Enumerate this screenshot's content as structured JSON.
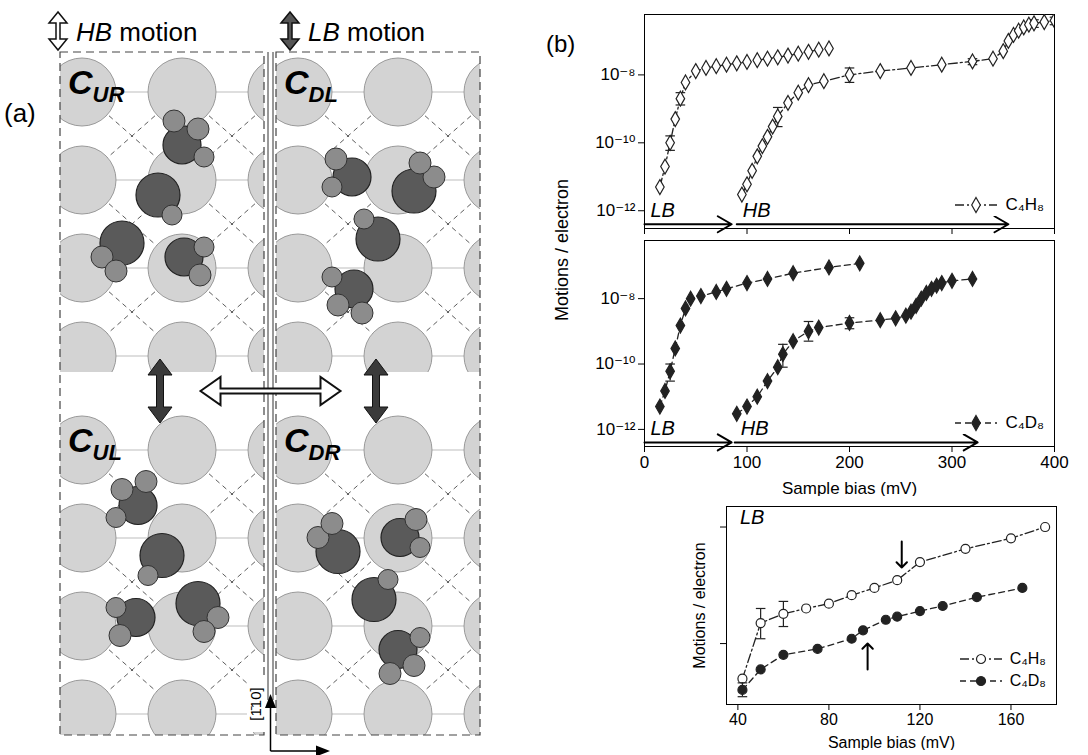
{
  "panel_labels": [
    "(a)",
    "(b)"
  ],
  "diagram": {
    "legend": [
      {
        "text": "HB motion",
        "arrow": "hollow"
      },
      {
        "text": "LB motion",
        "arrow": "filled"
      }
    ],
    "cells": [
      {
        "label": "C",
        "subscript": "UR",
        "position": "top-left"
      },
      {
        "label": "C",
        "subscript": "DL",
        "position": "top-right"
      },
      {
        "label": "C",
        "subscript": "UL",
        "position": "bottom-left"
      },
      {
        "label": "C",
        "subscript": "DR",
        "position": "bottom-right"
      }
    ],
    "direction_label": "[1̄10]"
  },
  "chart_data": [
    {
      "type": "line",
      "log": "y",
      "xlim": [
        0,
        400
      ],
      "xticks": [
        0,
        100,
        200,
        300,
        400
      ],
      "ylim": [
        3e-13,
        6e-07
      ],
      "yticks": [
        {
          "value": 1e-12,
          "label": "10⁻¹²"
        },
        {
          "value": 1e-10,
          "label": "10⁻¹⁰"
        },
        {
          "value": 1e-08,
          "label": "10⁻⁸"
        }
      ],
      "tick_labels": "y",
      "legend": "lower right",
      "series": [
        {
          "name": "C₄H₈",
          "range": "LB",
          "color": "#222222",
          "marker": "diamond-open",
          "line_style": "dashdot",
          "x": [
            15,
            20,
            25,
            30,
            35,
            40,
            50,
            60,
            70,
            80,
            90,
            100,
            110,
            120,
            130,
            140,
            150,
            160,
            170,
            180
          ],
          "values": [
            5e-12,
            2e-11,
            1e-10,
            5e-10,
            2e-09,
            6e-09,
            1.3e-08,
            1.6e-08,
            1.8e-08,
            2e-08,
            2.2e-08,
            2.4e-08,
            2.7e-08,
            3e-08,
            3.3e-08,
            3.7e-08,
            4.2e-08,
            4.8e-08,
            5.5e-08,
            6e-08
          ],
          "errors": [
            null,
            null,
            [
              6e-11,
              1.6e-10
            ],
            null,
            [
              1.3e-09,
              3e-09
            ],
            null,
            null,
            null,
            null,
            null,
            null,
            null,
            null,
            null,
            null,
            null,
            null,
            null,
            null,
            null
          ]
        },
        {
          "name": "C₄H₈",
          "range": "HB",
          "color": "#222222",
          "marker": "diamond-open",
          "line_style": "dashdot",
          "x": [
            95,
            100,
            105,
            110,
            115,
            120,
            125,
            130,
            140,
            150,
            160,
            175,
            200,
            230,
            260,
            290,
            320,
            340,
            350,
            355,
            360,
            365,
            370,
            375,
            380,
            390,
            400
          ],
          "values": [
            3e-12,
            6e-12,
            1.5e-11,
            4e-11,
            8e-11,
            1.5e-10,
            3e-10,
            6e-10,
            1.5e-09,
            3e-09,
            5e-09,
            6.5e-09,
            1e-08,
            1.3e-08,
            1.6e-08,
            2e-08,
            2.5e-08,
            3e-08,
            5e-08,
            1e-07,
            1.5e-07,
            2e-07,
            2.5e-07,
            3e-07,
            3.3e-07,
            3.6e-07,
            4e-07
          ],
          "errors": [
            null,
            null,
            null,
            null,
            null,
            null,
            null,
            [
              3e-10,
              1.1e-09
            ],
            null,
            null,
            null,
            null,
            [
              6e-09,
              1.6e-08
            ],
            null,
            null,
            null,
            [
              2e-08,
              3e-08
            ],
            null,
            null,
            null,
            null,
            null,
            null,
            null,
            [
              2.5e-07,
              4.2e-07
            ],
            null,
            [
              3e-07,
              5e-07
            ]
          ]
        }
      ],
      "ranges": [
        {
          "label": "LB",
          "from": 0,
          "to": 85,
          "y": 4e-13
        },
        {
          "label": "HB",
          "from": 90,
          "to": 355,
          "y": 4e-13
        }
      ]
    },
    {
      "type": "line",
      "log": "y",
      "xlabel": "Sample bias (mV)",
      "ylabel": "Motions / electron",
      "xlim": [
        0,
        400
      ],
      "xticks": [
        0,
        100,
        200,
        300,
        400
      ],
      "ylim": [
        3e-13,
        6e-07
      ],
      "yticks": [
        {
          "value": 1e-12,
          "label": "10⁻¹²"
        },
        {
          "value": 1e-10,
          "label": "10⁻¹⁰"
        },
        {
          "value": 1e-08,
          "label": "10⁻⁸"
        }
      ],
      "tick_labels": true,
      "legend": "lower right",
      "series": [
        {
          "name": "C₄D₈",
          "range": "LB",
          "color": "#222222",
          "marker": "diamond",
          "line_style": "dashed",
          "x": [
            15,
            20,
            25,
            30,
            35,
            40,
            45,
            55,
            70,
            80,
            100,
            120,
            145,
            180,
            210
          ],
          "values": [
            5e-12,
            1.5e-11,
            6e-11,
            3e-10,
            1.5e-09,
            5e-09,
            1e-08,
            1.2e-08,
            1.6e-08,
            2e-08,
            3e-08,
            4e-08,
            6e-08,
            9e-08,
            1.2e-07
          ],
          "errors": [
            null,
            null,
            [
              3e-11,
              1e-10
            ],
            null,
            null,
            null,
            null,
            null,
            null,
            null,
            null,
            null,
            null,
            null,
            null
          ]
        },
        {
          "name": "C₄D₈",
          "range": "HB",
          "color": "#222222",
          "marker": "diamond",
          "line_style": "dashed",
          "x": [
            90,
            100,
            110,
            120,
            130,
            135,
            145,
            160,
            170,
            200,
            230,
            245,
            255,
            260,
            265,
            270,
            275,
            280,
            285,
            290,
            300,
            320
          ],
          "values": [
            3e-12,
            5e-12,
            1e-11,
            3e-11,
            8e-11,
            2e-10,
            5e-10,
            1e-09,
            1.3e-09,
            1.8e-09,
            2.2e-09,
            2.5e-09,
            3e-09,
            4e-09,
            6e-09,
            1e-08,
            1.5e-08,
            2e-08,
            2.5e-08,
            3e-08,
            3.5e-08,
            4e-08
          ],
          "errors": [
            null,
            null,
            null,
            null,
            null,
            [
              8e-11,
              4e-10
            ],
            null,
            [
              5e-10,
              2e-09
            ],
            null,
            [
              1.2e-09,
              2.6e-09
            ],
            null,
            null,
            null,
            null,
            null,
            null,
            null,
            null,
            null,
            null,
            null,
            null
          ]
        }
      ],
      "ranges": [
        {
          "label": "LB",
          "from": 0,
          "to": 85,
          "y": 4e-13
        },
        {
          "label": "HB",
          "from": 88,
          "to": 325,
          "y": 4e-13
        }
      ]
    },
    {
      "type": "line",
      "log": "y",
      "xlabel": "Sample bias (mV)",
      "ylabel": "Motions / electron",
      "xlim": [
        35,
        180
      ],
      "xticks": [
        40,
        80,
        120,
        160
      ],
      "ylim": [
        3e-09,
        1.5e-07
      ],
      "yticks": [
        1e-08,
        1e-07
      ],
      "tick_labels": "x",
      "legend": "lower right",
      "series": [
        {
          "name": "C₄H₈",
          "color": "#222222",
          "marker": "circle-open",
          "line_style": "dashdot",
          "x": [
            42,
            50,
            60,
            70,
            80,
            90,
            100,
            110,
            120,
            140,
            160,
            175
          ],
          "values": [
            5e-09,
            1.5e-08,
            1.8e-08,
            2e-08,
            2.2e-08,
            2.6e-08,
            3e-08,
            3.5e-08,
            5e-08,
            6.5e-08,
            8e-08,
            1e-07
          ],
          "errors": [
            null,
            [
              1.1e-08,
              2e-08
            ],
            [
              1.4e-08,
              2.3e-08
            ],
            null,
            null,
            null,
            null,
            null,
            null,
            null,
            null,
            null
          ]
        },
        {
          "name": "C₄D₈",
          "color": "#222222",
          "marker": "circle",
          "line_style": "dashed",
          "x": [
            42,
            50,
            60,
            75,
            90,
            95,
            105,
            110,
            120,
            130,
            145,
            165
          ],
          "values": [
            4e-09,
            6e-09,
            8e-09,
            9e-09,
            1.1e-08,
            1.3e-08,
            1.6e-08,
            1.7e-08,
            1.9e-08,
            2.1e-08,
            2.5e-08,
            3e-08
          ],
          "errors": [
            [
              3.5e-09,
              4.6e-09
            ],
            null,
            null,
            null,
            null,
            null,
            null,
            null,
            null,
            null,
            null,
            null
          ]
        }
      ],
      "annotations": [
        {
          "text": "LB",
          "x": 40,
          "y": 1.2e-07
        }
      ],
      "arrows": [
        {
          "x": 112,
          "y": 4.5e-08,
          "direction": "down"
        },
        {
          "x": 97,
          "y": 1e-08,
          "direction": "up"
        }
      ]
    }
  ]
}
